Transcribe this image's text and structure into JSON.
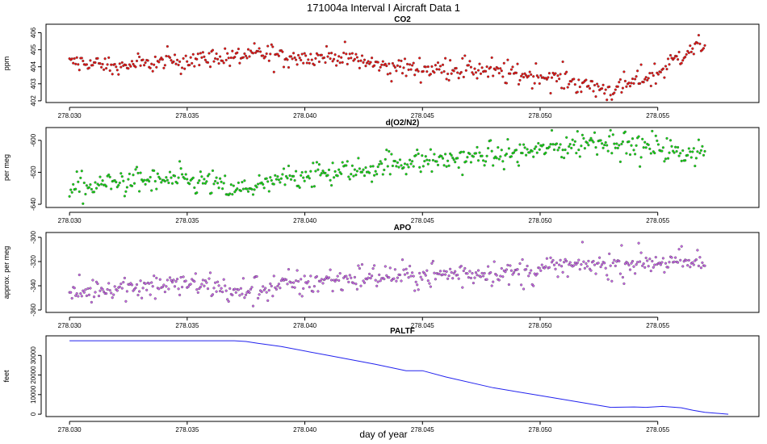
{
  "figure": {
    "title": "171004a   Interval I Aircraft Data 1",
    "xlabel": "day of year",
    "xlim": [
      278.029,
      278.0593
    ]
  },
  "chart_data": [
    {
      "id": "co2",
      "type": "scatter",
      "title": "CO2",
      "ylabel": "ppm",
      "color": "#ee1111",
      "x_ticks": [
        "278.030",
        "278.035",
        "278.040",
        "278.045",
        "278.050",
        "278.055"
      ],
      "y_ticks": [
        "402",
        "403",
        "404",
        "405",
        "406"
      ],
      "ylim": [
        401.9,
        406.5
      ],
      "x_range": [
        278.03,
        278.057
      ],
      "trend": [
        [
          278.03,
          404.3
        ],
        [
          278.032,
          404.0
        ],
        [
          278.034,
          404.3
        ],
        [
          278.036,
          404.5
        ],
        [
          278.038,
          404.7
        ],
        [
          278.04,
          404.6
        ],
        [
          278.042,
          404.5
        ],
        [
          278.043,
          404.1
        ],
        [
          278.045,
          403.9
        ],
        [
          278.047,
          403.9
        ],
        [
          278.049,
          403.6
        ],
        [
          278.051,
          403.3
        ],
        [
          278.052,
          402.9
        ],
        [
          278.053,
          402.6
        ],
        [
          278.054,
          403.1
        ],
        [
          278.055,
          403.6
        ],
        [
          278.056,
          404.8
        ],
        [
          278.057,
          405.2
        ]
      ],
      "noise": 0.35
    },
    {
      "id": "o2n2",
      "type": "scatter",
      "title": "d(O2/N2)",
      "ylabel": "per meg",
      "color": "#11dd11",
      "x_ticks": [
        "278.030",
        "278.035",
        "278.040",
        "278.045",
        "278.050",
        "278.055"
      ],
      "y_ticks": [
        "-640",
        "-620",
        "-600"
      ],
      "ylim": [
        -642,
        -592
      ],
      "x_range": [
        278.03,
        278.057
      ],
      "trend": [
        [
          278.03,
          -631
        ],
        [
          278.032,
          -626
        ],
        [
          278.034,
          -625
        ],
        [
          278.036,
          -626
        ],
        [
          278.037,
          -632
        ],
        [
          278.0385,
          -627
        ],
        [
          278.04,
          -621
        ],
        [
          278.042,
          -620
        ],
        [
          278.044,
          -614
        ],
        [
          278.046,
          -612
        ],
        [
          278.048,
          -610
        ],
        [
          278.05,
          -606
        ],
        [
          278.052,
          -601
        ],
        [
          278.053,
          -600
        ],
        [
          278.054,
          -604
        ],
        [
          278.055,
          -604
        ],
        [
          278.056,
          -608
        ],
        [
          278.057,
          -606
        ]
      ],
      "noise": 4.5
    },
    {
      "id": "apo",
      "type": "scatter",
      "title": "APO",
      "ylabel": "approx. per meg",
      "color": "#cc66ee",
      "x_ticks": [
        "278.030",
        "278.035",
        "278.040",
        "278.045",
        "278.050",
        "278.055"
      ],
      "y_ticks": [
        "-360",
        "-340",
        "-320",
        "-300"
      ],
      "ylim": [
        -362,
        -296
      ],
      "x_range": [
        278.03,
        278.057
      ],
      "trend": [
        [
          278.03,
          -347
        ],
        [
          278.032,
          -341
        ],
        [
          278.034,
          -339
        ],
        [
          278.036,
          -339
        ],
        [
          278.037,
          -346
        ],
        [
          278.039,
          -340
        ],
        [
          278.041,
          -335
        ],
        [
          278.043,
          -333
        ],
        [
          278.045,
          -331
        ],
        [
          278.047,
          -330
        ],
        [
          278.049,
          -329
        ],
        [
          278.051,
          -324
        ],
        [
          278.053,
          -322
        ],
        [
          278.055,
          -320
        ],
        [
          278.057,
          -322
        ]
      ],
      "noise": 6
    },
    {
      "id": "paltf",
      "type": "line",
      "title": "PALTF",
      "ylabel": "feet",
      "color": "#2222ee",
      "x_ticks": [
        "278.030",
        "278.035",
        "278.040",
        "278.045",
        "278.050",
        "278.055"
      ],
      "y_ticks": [
        "0",
        "10000",
        "20000",
        "30000"
      ],
      "ylim": [
        -1200,
        40000
      ],
      "x": [
        278.03,
        278.037,
        278.0375,
        278.038,
        278.039,
        278.041,
        278.043,
        278.0443,
        278.045,
        278.046,
        278.048,
        278.05,
        278.052,
        278.053,
        278.054,
        278.0545,
        278.0552,
        278.056,
        278.0565,
        278.057,
        278.058
      ],
      "y": [
        37500,
        37500,
        37100,
        36200,
        34500,
        30000,
        25500,
        22200,
        22200,
        19000,
        13500,
        9500,
        5500,
        3500,
        3700,
        3500,
        4000,
        3300,
        2000,
        1000,
        0
      ]
    }
  ]
}
